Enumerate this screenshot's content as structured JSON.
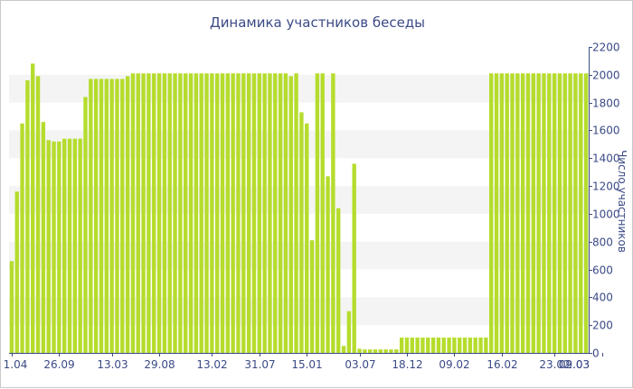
{
  "chart_data": {
    "type": "bar",
    "title": "Динамика участников беседы",
    "xlabel": "",
    "ylabel": "Число участников",
    "ylim": [
      0,
      2200
    ],
    "yticks": [
      0,
      200,
      400,
      600,
      800,
      1000,
      1200,
      1400,
      1600,
      1800,
      2000,
      2200
    ],
    "y_axis_side": "right",
    "grid": "horizontal bands",
    "bar_color": "#b5dc2c",
    "axis_color": "#3b4a86",
    "band_color": "#f4f4f4",
    "x_tick_labels": [
      {
        "label": "1.04",
        "index": 0
      },
      {
        "label": "26.09",
        "index": 9
      },
      {
        "label": "13.03",
        "index": 19
      },
      {
        "label": "29.08",
        "index": 28
      },
      {
        "label": "13.02",
        "index": 38
      },
      {
        "label": "31.07",
        "index": 47
      },
      {
        "label": "15.01",
        "index": 56
      },
      {
        "label": "03.07",
        "index": 66
      },
      {
        "label": "18.12",
        "index": 75
      },
      {
        "label": "09.02",
        "index": 84
      },
      {
        "label": "16.02",
        "index": 93
      },
      {
        "label": "23.02",
        "index": 103
      },
      {
        "label": "02.03",
        "index": 112
      },
      {
        "label": "09.03",
        "index": 121
      }
    ],
    "values": [
      660,
      1160,
      1650,
      1960,
      2080,
      1990,
      1660,
      1530,
      1520,
      1520,
      1540,
      1540,
      1540,
      1540,
      1840,
      1970,
      1970,
      1970,
      1970,
      1970,
      1970,
      1970,
      1990,
      2010,
      2010,
      2010,
      2010,
      2010,
      2010,
      2010,
      2010,
      2010,
      2010,
      2010,
      2010,
      2010,
      2010,
      2010,
      2010,
      2010,
      2010,
      2010,
      2010,
      2010,
      2010,
      2010,
      2010,
      2010,
      2010,
      2010,
      2010,
      2010,
      2010,
      1990,
      2010,
      1730,
      1650,
      810,
      2010,
      2010,
      1270,
      2010,
      1040,
      50,
      300,
      1360,
      30,
      25,
      25,
      25,
      25,
      25,
      25,
      25,
      110,
      110,
      110,
      110,
      110,
      110,
      110,
      110,
      110,
      110,
      110,
      110,
      110,
      110,
      110,
      110,
      110,
      2010,
      2010,
      2010,
      2010,
      2010,
      2010,
      2010,
      2010,
      2010,
      2010,
      2010,
      2010,
      2010,
      2010,
      2010,
      2010,
      2010,
      2010,
      2010
    ]
  }
}
